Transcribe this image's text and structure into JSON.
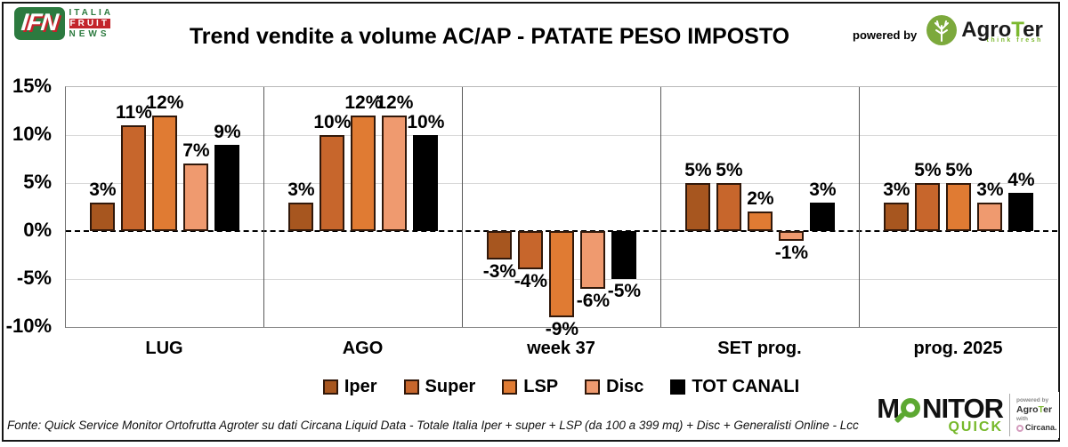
{
  "header": {
    "ifn": {
      "mark": "IFN",
      "line1": "ITALIA",
      "line2": "FRUIT",
      "line3": "NEWS"
    },
    "title": "Trend vendite a volume AC/AP - PATATE PESO IMPOSTO",
    "powered_by": "powered by",
    "agroter": {
      "agro": "Agro",
      "t": "T",
      "er": "er",
      "tagline": "think fresh"
    }
  },
  "chart_data": {
    "type": "bar",
    "title": "Trend vendite a volume AC/AP - PATATE PESO IMPOSTO",
    "categories": [
      "LUG",
      "AGO",
      "week 37",
      "SET prog.",
      "prog. 2025"
    ],
    "series": [
      {
        "name": "Iper",
        "color": "#a7561f",
        "values": [
          3,
          3,
          -3,
          5,
          3
        ]
      },
      {
        "name": "Super",
        "color": "#c7662c",
        "values": [
          11,
          10,
          -4,
          5,
          5
        ]
      },
      {
        "name": "LSP",
        "color": "#e07b33",
        "values": [
          12,
          12,
          -9,
          2,
          5
        ]
      },
      {
        "name": "Disc",
        "color": "#ef9a6f",
        "values": [
          7,
          12,
          -6,
          -1,
          3
        ]
      },
      {
        "name": "TOT CANALI",
        "color": "#000000",
        "values": [
          9,
          10,
          -5,
          3,
          4
        ]
      }
    ],
    "ylim": [
      -10,
      15
    ],
    "yticks": [
      {
        "value": 15,
        "label": "15%"
      },
      {
        "value": 10,
        "label": "10%"
      },
      {
        "value": 5,
        "label": "5%"
      },
      {
        "value": 0,
        "label": "0%"
      },
      {
        "value": -5,
        "label": "-5%"
      },
      {
        "value": -10,
        "label": "-10%"
      }
    ],
    "value_suffix": "%",
    "grid": true,
    "legend_position": "bottom"
  },
  "footer": {
    "source": "Fonte: Quick Service Monitor Ortofrutta Agroter su dati Circana Liquid Data - Totale Italia Iper + super + LSP (da 100 a 399 mq) + Disc + Generalisti Online - Lcc"
  },
  "monitor_logo": {
    "monitor_m": "M",
    "monitor_rest": "NITOR",
    "quick": "QUICK",
    "powered_by": "powered by",
    "agroter_agro": "Agro",
    "agroter_t": "T",
    "agroter_er": "er",
    "with": "with",
    "circana": "Circana."
  }
}
